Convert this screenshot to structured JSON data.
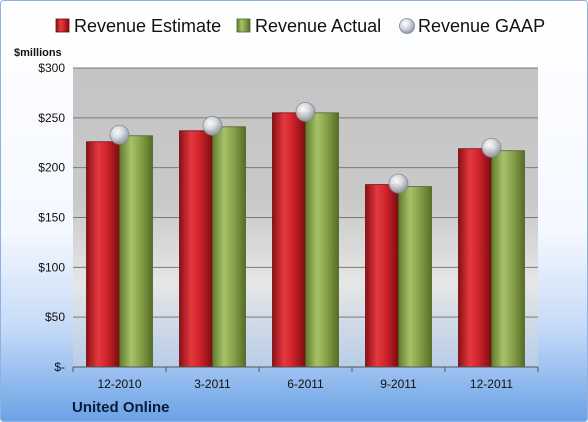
{
  "chart_data": {
    "type": "bar",
    "unit_label": "$millions",
    "company": "United Online",
    "categories": [
      "12-2010",
      "3-2011",
      "6-2011",
      "9-2011",
      "12-2011"
    ],
    "series": [
      {
        "name": "Revenue Estimate",
        "kind": "bar",
        "color": "#cc1f2a",
        "values": [
          226,
          237,
          255,
          183,
          219
        ]
      },
      {
        "name": "Revenue Actual",
        "kind": "bar",
        "color": "#8aa64a",
        "values": [
          232,
          241,
          255,
          181,
          217
        ]
      },
      {
        "name": "Revenue GAAP",
        "kind": "marker",
        "color": "#b8bec8",
        "values": [
          233,
          242,
          256,
          184,
          220
        ]
      }
    ],
    "y_ticks": [
      {
        "value": 0,
        "label": "$-"
      },
      {
        "value": 50,
        "label": "$50"
      },
      {
        "value": 100,
        "label": "$100"
      },
      {
        "value": 150,
        "label": "$150"
      },
      {
        "value": 200,
        "label": "$200"
      },
      {
        "value": 250,
        "label": "$250"
      },
      {
        "value": 300,
        "label": "$300"
      }
    ],
    "ylim": [
      0,
      300
    ],
    "grid": true,
    "legend_position": "top"
  }
}
